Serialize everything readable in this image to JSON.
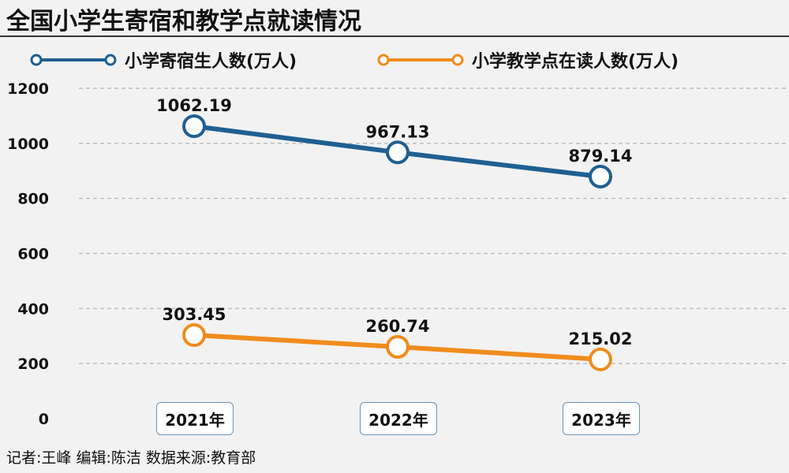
{
  "title": "全国小学生寄宿和教学点就读情况",
  "credit": "记者:王峰  编辑:陈洁  数据来源:教育部",
  "colors": {
    "series1": "#1f5f91",
    "series2": "#f08c1e",
    "background": "#f2f2f2",
    "grid": "#bdbdbd"
  },
  "chart_data": {
    "type": "line",
    "title": "全国小学生寄宿和教学点就读情况",
    "categories": [
      "2021年",
      "2022年",
      "2023年"
    ],
    "series": [
      {
        "name": "小学寄宿生人数(万人)",
        "values": [
          1062.19,
          967.13,
          879.14
        ],
        "labels": [
          "1062.19",
          "967.13",
          "879.14"
        ],
        "color": "#1f5f91"
      },
      {
        "name": "小学教学点在读人数(万人)",
        "values": [
          303.45,
          260.74,
          215.02
        ],
        "labels": [
          "303.45",
          "260.74",
          "215.02"
        ],
        "color": "#f08c1e"
      }
    ],
    "yticks": [
      "0",
      "200",
      "400",
      "600",
      "800",
      "1000",
      "1200"
    ],
    "ylim": [
      0,
      1200
    ],
    "grid": true,
    "legend": "top"
  }
}
